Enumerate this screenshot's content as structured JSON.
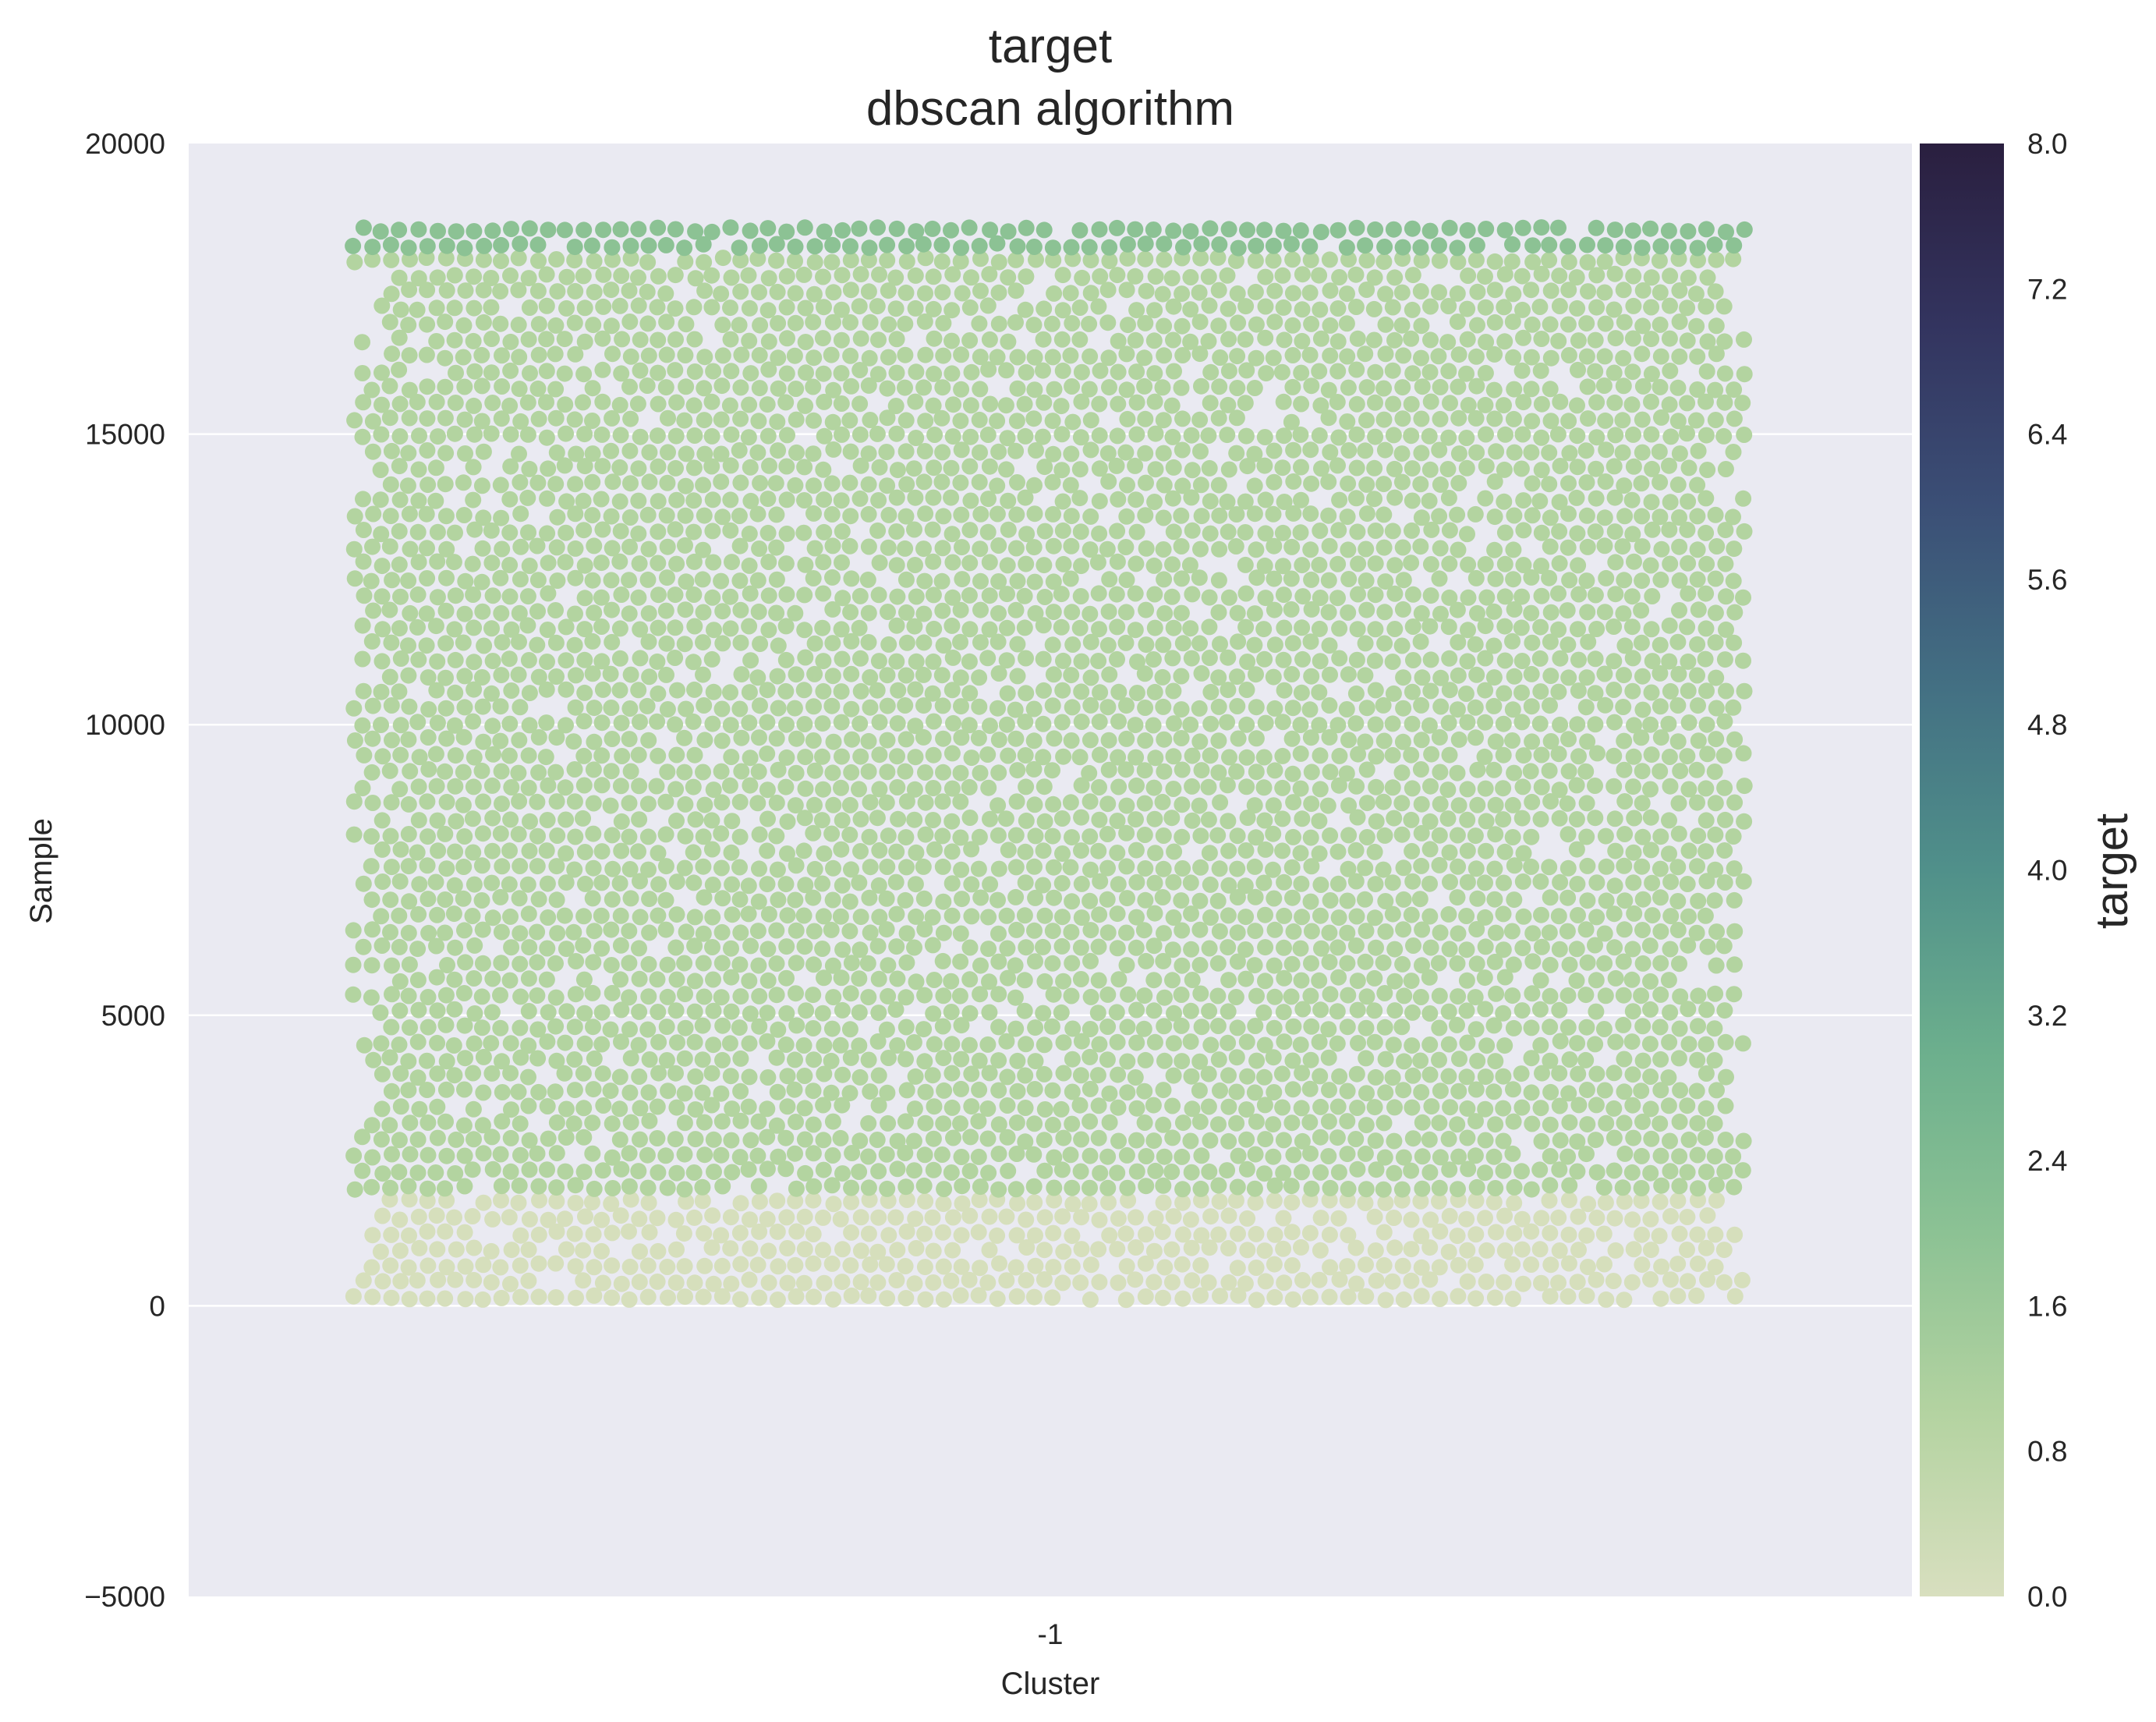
{
  "chart_data": {
    "type": "scatter",
    "title": "target",
    "subtitle": "dbscan algorithm",
    "xlabel": "Cluster",
    "ylabel": "Sample",
    "categories": [
      "-1"
    ],
    "ylim": [
      -5000,
      20000
    ],
    "yticks": [
      {
        "value": 20000,
        "label": "20000"
      },
      {
        "value": 15000,
        "label": "15000"
      },
      {
        "value": 10000,
        "label": "10000"
      },
      {
        "value": 5000,
        "label": "5000"
      },
      {
        "value": 0,
        "label": "0"
      },
      {
        "value": -5000,
        "label": "−5000"
      }
    ],
    "grid": true,
    "colorbar": {
      "label": "target",
      "range": [
        0.0,
        8.0
      ],
      "ticks": [
        "0.0",
        "0.8",
        "1.6",
        "2.4",
        "3.2",
        "4.0",
        "4.8",
        "5.6",
        "6.4",
        "7.2",
        "8.0"
      ],
      "colors": [
        "#d8dfbf",
        "#b4d3a1",
        "#8cc294",
        "#6caf8d",
        "#50908a",
        "#437083",
        "#3b4f76",
        "#33345f",
        "#2a1f3f"
      ]
    },
    "series": [
      {
        "cluster": "-1",
        "target_range": [
          0,
          1
        ],
        "sample_range": [
          0,
          1900
        ],
        "color": "#d6dfbc"
      },
      {
        "cluster": "-1",
        "target_range": [
          1,
          1
        ],
        "sample_range": [
          1900,
          18100
        ],
        "color": "#b3d4a0"
      },
      {
        "cluster": "-1",
        "target_range": [
          2,
          2
        ],
        "sample_range": [
          18100,
          18550
        ],
        "color": "#8cc294"
      }
    ],
    "background": "#eaeaf2",
    "grid_color": "#ffffff"
  }
}
